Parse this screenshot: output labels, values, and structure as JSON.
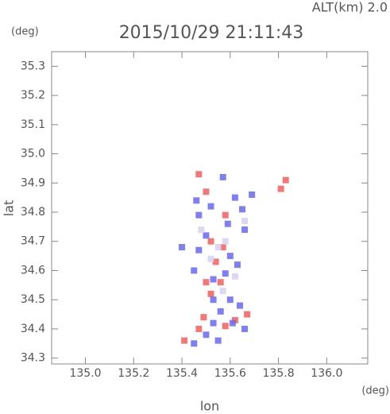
{
  "chart_data": {
    "type": "scatter",
    "header": "ALT(km) 2.0",
    "title": "2015/10/29 21:11:43",
    "y_unit": "(deg)",
    "x_unit": "(deg)",
    "xlabel": "lon",
    "ylabel": "lat",
    "xlim": [
      134.86,
      136.17
    ],
    "ylim": [
      34.28,
      35.35
    ],
    "xticks": [
      {
        "value": 135.0,
        "label": "135.0"
      },
      135.2,
      135.4,
      135.6,
      135.8,
      {
        "value": 136.0,
        "label": "136.0"
      }
    ],
    "yticks": [
      35.3,
      35.2,
      35.1,
      {
        "value": 35.0,
        "label": "35.0"
      },
      34.9,
      34.8,
      34.7,
      34.6,
      34.5,
      34.4,
      34.3
    ],
    "grid": false,
    "series": [
      {
        "color": "#f06060",
        "x": [
          135.47,
          135.83,
          135.81,
          135.5,
          135.58,
          135.52,
          135.57,
          135.54,
          135.5,
          135.56,
          135.52,
          135.49,
          135.58,
          135.62,
          135.67,
          135.41,
          135.47
        ],
        "values": [
          34.93,
          34.91,
          34.88,
          34.87,
          34.79,
          34.7,
          34.68,
          34.63,
          34.56,
          34.56,
          34.52,
          34.44,
          34.41,
          34.43,
          34.45,
          34.36,
          34.4
        ]
      },
      {
        "color": "#6868f0",
        "x": [
          135.57,
          135.46,
          135.52,
          135.62,
          135.65,
          135.69,
          135.47,
          135.66,
          135.5,
          135.59,
          135.4,
          135.47,
          135.6,
          135.63,
          135.45,
          135.58,
          135.53,
          135.6,
          135.53,
          135.64,
          135.56,
          135.61,
          135.66,
          135.53,
          135.5,
          135.45,
          135.55
        ],
        "values": [
          34.92,
          34.84,
          34.82,
          34.85,
          34.81,
          34.86,
          34.79,
          34.74,
          34.72,
          34.76,
          34.68,
          34.67,
          34.65,
          34.62,
          34.6,
          34.59,
          34.57,
          34.5,
          34.5,
          34.48,
          34.46,
          34.42,
          34.4,
          34.42,
          34.38,
          34.35,
          34.36
        ]
      },
      {
        "color": "#d8d0f0",
        "x": [
          135.55,
          135.58,
          135.52,
          135.62,
          135.57,
          135.48,
          135.66
        ],
        "values": [
          34.68,
          34.7,
          34.64,
          34.58,
          34.53,
          34.74,
          34.77
        ]
      }
    ]
  }
}
